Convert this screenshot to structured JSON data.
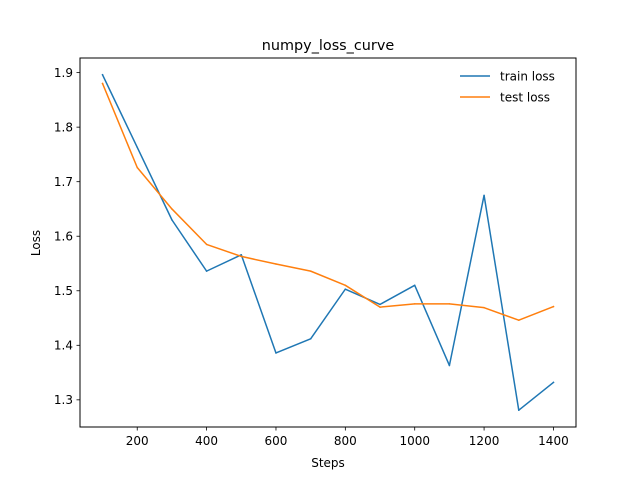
{
  "chart_data": {
    "type": "line",
    "title": "numpy_loss_curve",
    "xlabel": "Steps",
    "ylabel": "Loss",
    "x": [
      100,
      200,
      300,
      400,
      500,
      600,
      700,
      800,
      900,
      1000,
      1100,
      1200,
      1300,
      1400
    ],
    "series": [
      {
        "name": "train loss",
        "color": "#1f77b4",
        "values": [
          1.896,
          1.763,
          1.63,
          1.536,
          1.566,
          1.386,
          1.412,
          1.503,
          1.475,
          1.51,
          1.363,
          1.675,
          1.281,
          1.332
        ]
      },
      {
        "name": "test loss",
        "color": "#ff7f0e",
        "values": [
          1.88,
          1.726,
          1.65,
          1.585,
          1.563,
          1.549,
          1.536,
          1.51,
          1.47,
          1.476,
          1.476,
          1.469,
          1.446,
          1.471
        ]
      }
    ],
    "xticks": [
      200,
      400,
      600,
      800,
      1000,
      1200,
      1400
    ],
    "xtick_labels": [
      "200",
      "400",
      "600",
      "800",
      "1000",
      "1200",
      "1400"
    ],
    "yticks": [
      1.3,
      1.4,
      1.5,
      1.6,
      1.7,
      1.8,
      1.9
    ],
    "ytick_labels": [
      "1.3",
      "1.4",
      "1.5",
      "1.6",
      "1.7",
      "1.8",
      "1.9"
    ],
    "xlim": [
      35,
      1465
    ],
    "ylim": [
      1.2502,
      1.9268
    ],
    "grid": false,
    "legend_position": "top-right"
  }
}
